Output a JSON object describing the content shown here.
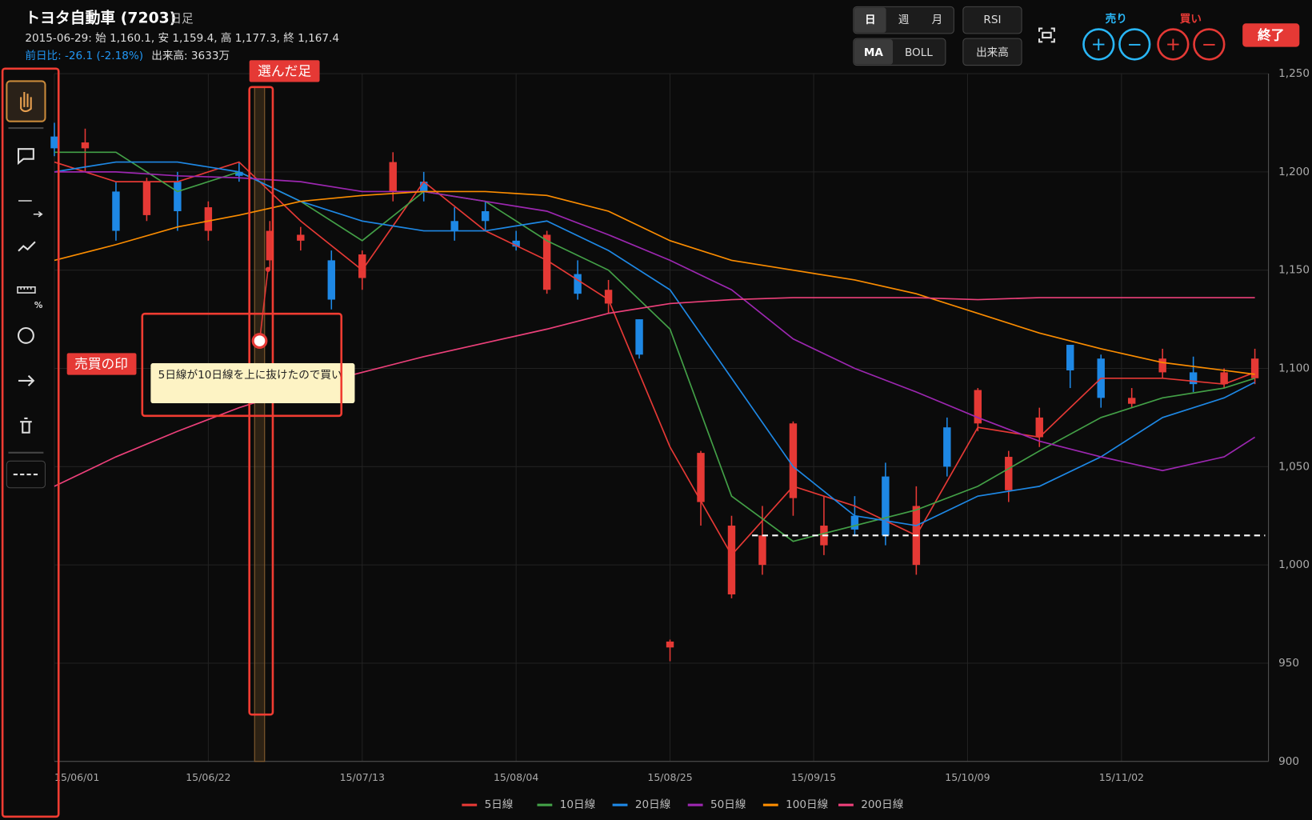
{
  "header": {
    "title": "トヨタ自動車 (7203)",
    "period": "日足",
    "ohlc": "2015-06-29: 始 1,160.1, 安 1,159.4, 高 1,177.3, 終 1,167.4",
    "change": "前日比: -26.1 (-2.18%)",
    "volume": "出来高: 3633万"
  },
  "controls": {
    "day": "日",
    "week": "週",
    "month": "月",
    "rsi": "RSI",
    "ma": "MA",
    "boll": "BOLL",
    "vol": "出来高",
    "sell": "売り",
    "buy": "買い",
    "plus": "+",
    "minus": "−",
    "exit": "終了"
  },
  "toolbar": {
    "ruler_label": "%"
  },
  "annotations": {
    "selected_label": "選んだ足",
    "marker_label": "売買の印",
    "note": "5日線が10日線を上に抜けたので買い"
  },
  "chart_data": {
    "type": "candlestick",
    "xlim": [
      0,
      118
    ],
    "xticks": [
      {
        "value": 0,
        "label": "15/06/01"
      },
      {
        "value": 15,
        "label": "15/06/22"
      },
      {
        "value": 30,
        "label": "15/07/13"
      },
      {
        "value": 45,
        "label": "15/08/04"
      },
      {
        "value": 60,
        "label": "15/08/25"
      },
      {
        "value": 74,
        "label": "15/09/15"
      },
      {
        "value": 89,
        "label": "15/10/09"
      },
      {
        "value": 104,
        "label": "15/11/02"
      }
    ],
    "ylim": [
      900,
      1250
    ],
    "yticks": [
      900,
      950,
      {
        "value": 1000,
        "label": "1,000"
      },
      {
        "value": 1050,
        "label": "1,050"
      },
      {
        "value": 1100,
        "label": "1,100"
      },
      {
        "value": 1150,
        "label": "1,150"
      },
      {
        "value": 1200,
        "label": "1,200"
      },
      {
        "value": 1250,
        "label": "1,250"
      }
    ],
    "grid": true,
    "up_color": "#e53935",
    "down_color": "#1e88e5",
    "x": [
      0,
      3,
      6,
      9,
      12,
      15,
      18,
      21,
      24,
      27,
      30,
      33,
      36,
      39,
      42,
      45,
      48,
      51,
      54,
      57,
      60,
      63,
      66,
      69,
      72,
      75,
      78,
      81,
      84,
      87,
      90,
      93,
      96,
      99,
      102,
      105,
      108,
      111,
      114,
      117
    ],
    "open": [
      1218,
      1212,
      1190,
      1178,
      1195,
      1170,
      1200,
      1155,
      1165,
      1155,
      1146,
      1190,
      1195,
      1175,
      1180,
      1165,
      1140,
      1148,
      1133,
      1125,
      958,
      1032,
      985,
      1000,
      1034,
      1010,
      1025,
      1045,
      1000,
      1070,
      1072,
      1038,
      1065,
      1112,
      1105,
      1082,
      1098,
      1098,
      1092,
      1095
    ],
    "high": [
      1225,
      1222,
      1195,
      1197,
      1200,
      1185,
      1205,
      1175,
      1172,
      1160,
      1160,
      1210,
      1200,
      1182,
      1185,
      1170,
      1170,
      1155,
      1145,
      1125,
      962,
      1058,
      1025,
      1030,
      1073,
      1035,
      1035,
      1052,
      1040,
      1075,
      1090,
      1058,
      1080,
      1112,
      1107,
      1090,
      1110,
      1106,
      1100,
      1110
    ],
    "low": [
      1208,
      1200,
      1165,
      1175,
      1170,
      1165,
      1195,
      1150,
      1160,
      1130,
      1140,
      1185,
      1185,
      1165,
      1170,
      1160,
      1138,
      1135,
      1128,
      1105,
      951,
      1020,
      983,
      995,
      1025,
      1005,
      1015,
      1010,
      995,
      1045,
      1068,
      1032,
      1060,
      1090,
      1080,
      1080,
      1095,
      1088,
      1090,
      1092
    ],
    "close": [
      1212,
      1215,
      1170,
      1195,
      1180,
      1182,
      1198,
      1170,
      1168,
      1135,
      1158,
      1205,
      1190,
      1170,
      1175,
      1162,
      1168,
      1138,
      1140,
      1107,
      961,
      1057,
      1020,
      1015,
      1072,
      1020,
      1018,
      1015,
      1030,
      1050,
      1089,
      1055,
      1075,
      1099,
      1085,
      1085,
      1105,
      1092,
      1098,
      1105
    ],
    "selected_x": 20,
    "trade_marker": {
      "x": 20,
      "value": 1114
    },
    "drawn_hline": {
      "from_x": 68,
      "value": 1015
    },
    "series": [
      {
        "name": "5日線",
        "color": "#e53935",
        "x": [
          0,
          6,
          12,
          18,
          24,
          30,
          36,
          42,
          48,
          54,
          60,
          66,
          72,
          78,
          84,
          90,
          96,
          102,
          108,
          114,
          117
        ],
        "values": [
          1205,
          1195,
          1195,
          1205,
          1175,
          1150,
          1195,
          1170,
          1155,
          1135,
          1060,
          1005,
          1040,
          1030,
          1015,
          1070,
          1065,
          1095,
          1095,
          1092,
          1098
        ]
      },
      {
        "name": "10日線",
        "color": "#43a047",
        "x": [
          0,
          6,
          12,
          18,
          24,
          30,
          36,
          42,
          48,
          54,
          60,
          66,
          72,
          78,
          84,
          90,
          96,
          102,
          108,
          114,
          117
        ],
        "values": [
          1210,
          1210,
          1190,
          1200,
          1185,
          1165,
          1190,
          1185,
          1165,
          1150,
          1120,
          1035,
          1012,
          1020,
          1028,
          1040,
          1058,
          1075,
          1085,
          1090,
          1095
        ]
      },
      {
        "name": "20日線",
        "color": "#1e88e5",
        "x": [
          0,
          6,
          12,
          18,
          24,
          30,
          36,
          42,
          48,
          54,
          60,
          66,
          72,
          78,
          84,
          90,
          96,
          102,
          108,
          114,
          117
        ],
        "values": [
          1200,
          1205,
          1205,
          1200,
          1185,
          1175,
          1170,
          1170,
          1175,
          1160,
          1140,
          1095,
          1050,
          1025,
          1020,
          1035,
          1040,
          1055,
          1075,
          1085,
          1093
        ]
      },
      {
        "name": "50日線",
        "color": "#9c27b0",
        "x": [
          0,
          6,
          12,
          18,
          24,
          30,
          36,
          42,
          48,
          54,
          60,
          66,
          72,
          78,
          84,
          90,
          96,
          102,
          108,
          114,
          117
        ],
        "values": [
          1200,
          1200,
          1198,
          1197,
          1195,
          1190,
          1190,
          1185,
          1180,
          1168,
          1155,
          1140,
          1115,
          1100,
          1088,
          1075,
          1063,
          1055,
          1048,
          1055,
          1065
        ]
      },
      {
        "name": "100日線",
        "color": "#fb8c00",
        "x": [
          0,
          6,
          12,
          18,
          24,
          30,
          36,
          42,
          48,
          54,
          60,
          66,
          72,
          78,
          84,
          90,
          96,
          102,
          108,
          114,
          117
        ],
        "values": [
          1155,
          1163,
          1172,
          1178,
          1185,
          1188,
          1190,
          1190,
          1188,
          1180,
          1165,
          1155,
          1150,
          1145,
          1138,
          1128,
          1118,
          1110,
          1103,
          1099,
          1097
        ]
      },
      {
        "name": "200日線",
        "color": "#ec407a",
        "x": [
          0,
          6,
          12,
          18,
          24,
          30,
          36,
          42,
          48,
          54,
          60,
          66,
          72,
          78,
          84,
          90,
          96,
          102,
          108,
          114,
          117
        ],
        "values": [
          1040,
          1055,
          1068,
          1080,
          1090,
          1098,
          1106,
          1113,
          1120,
          1128,
          1133,
          1135,
          1136,
          1136,
          1136,
          1135,
          1136,
          1136,
          1136,
          1136,
          1136
        ]
      }
    ]
  }
}
